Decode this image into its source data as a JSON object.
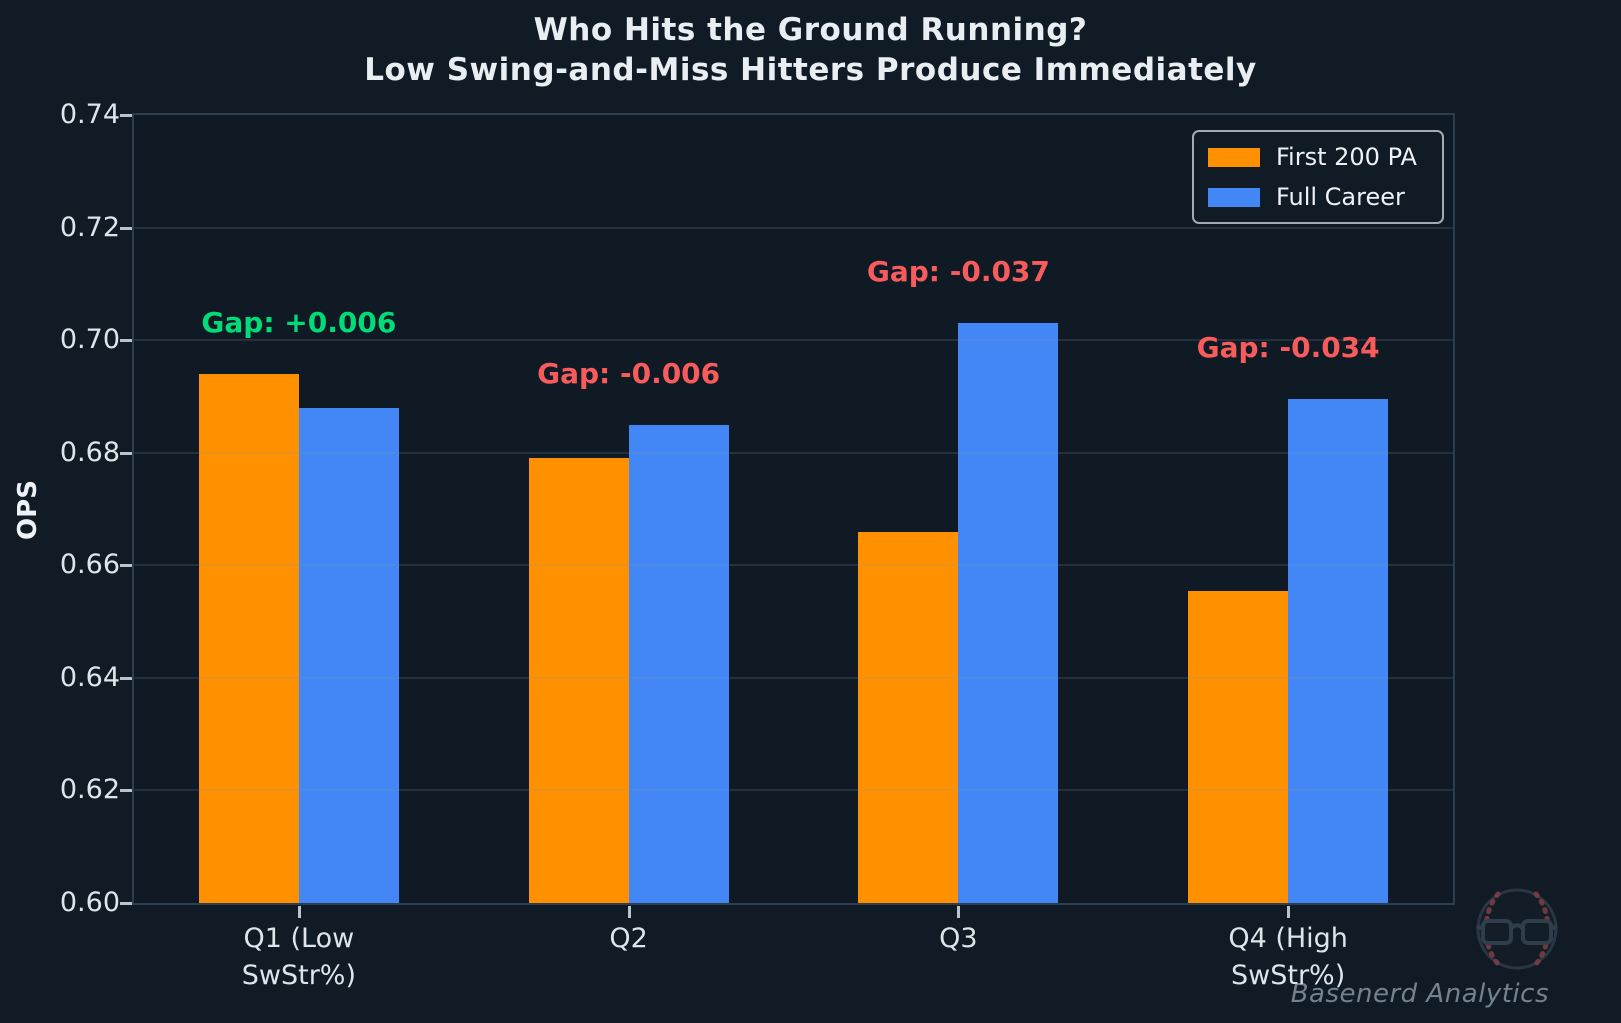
{
  "title": {
    "line1": "Who Hits the Ground Running?",
    "line2": "Low Swing-and-Miss Hitters Produce Immediately"
  },
  "ylabel": "OPS",
  "watermark": "Basenerd Analytics",
  "colors": {
    "background": "#111b26",
    "plot_background": "#101a24",
    "spine": "#2d3e4f",
    "first_200_pa": "#ff9100",
    "full_career": "#4287f5",
    "gap_positive": "#00dc78",
    "gap_negative": "#f85b5b",
    "text": "#e9eef3"
  },
  "legend": {
    "items": [
      {
        "label": "First 200 PA",
        "color": "#ff9100"
      },
      {
        "label": "Full Career",
        "color": "#4287f5"
      }
    ]
  },
  "chart_data": {
    "type": "bar",
    "title": "Who Hits the Ground Running? Low Swing-and-Miss Hitters Produce Immediately",
    "xlabel": "",
    "ylabel": "OPS",
    "ylim": [
      0.6,
      0.74
    ],
    "yticks": [
      0.6,
      0.62,
      0.64,
      0.66,
      0.68,
      0.7,
      0.72,
      0.74
    ],
    "grid": true,
    "legend_position": "upper right",
    "categories": [
      "Q1 (Low\nSwStr%)",
      "Q2",
      "Q3",
      "Q4 (High\nSwStr%)"
    ],
    "series": [
      {
        "name": "First 200 PA",
        "color": "#ff9100",
        "values": [
          0.694,
          0.679,
          0.666,
          0.6555
        ]
      },
      {
        "name": "Full Career",
        "color": "#4287f5",
        "values": [
          0.688,
          0.685,
          0.703,
          0.6895
        ]
      }
    ],
    "gap_annotations": [
      {
        "text": "Gap: +0.006",
        "value": 0.006,
        "color": "#00dc78"
      },
      {
        "text": "Gap: -0.006",
        "value": -0.006,
        "color": "#f85b5b"
      },
      {
        "text": "Gap: -0.037",
        "value": -0.037,
        "color": "#f85b5b"
      },
      {
        "text": "Gap: -0.034",
        "value": -0.034,
        "color": "#f85b5b"
      }
    ]
  }
}
